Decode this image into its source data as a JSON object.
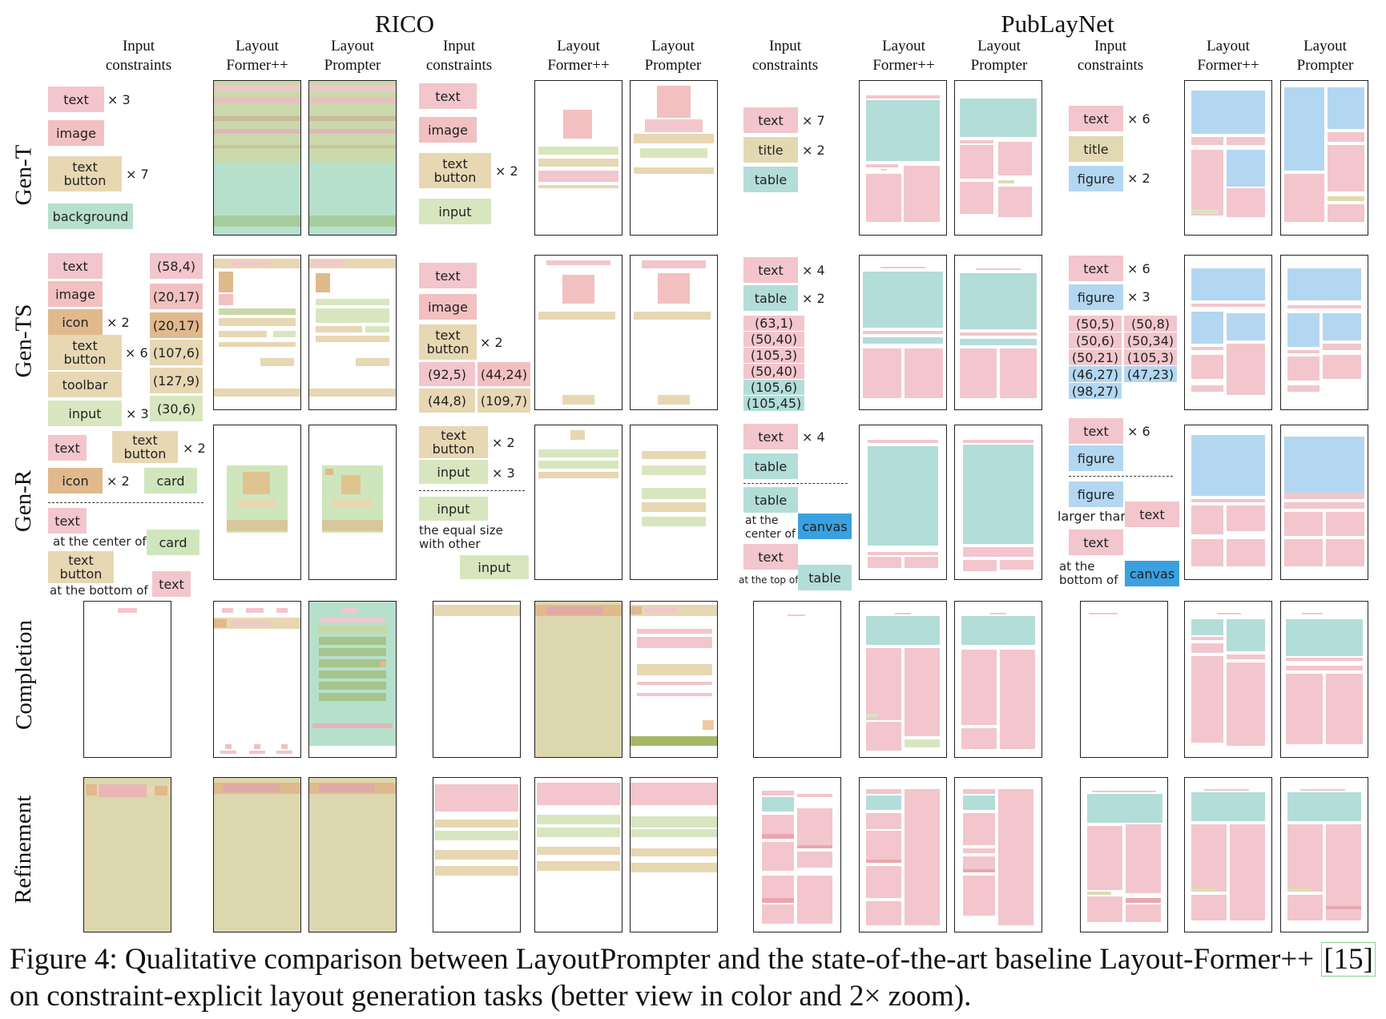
{
  "figure": {
    "datasets": [
      {
        "name": "RICO"
      },
      {
        "name": "PubLayNet"
      }
    ],
    "column_headers": {
      "input": "Input\nconstraints",
      "lfpp": "Layout\nFormer++",
      "lp": "Layout\nPrompter"
    },
    "rows": [
      {
        "label": "Gen-T"
      },
      {
        "label": "Gen-TS"
      },
      {
        "label": "Gen-R"
      },
      {
        "label": "Completion"
      },
      {
        "label": "Refinement"
      }
    ],
    "colors": {
      "text": "#f2c6cc",
      "image": "#f2c0c0",
      "icon": "#e0b98d",
      "text_button": "#e7d7b3",
      "toolbar": "#e7d7b3",
      "input": "#d8e6bf",
      "background": "#b7e0cc",
      "card": "#cfe6bd",
      "title": "#e2d9b3",
      "table": "#b3ddd9",
      "figure": "#b3d7f0",
      "canvas": "#3ba0e0"
    },
    "constraints": {
      "gt_rico1": [
        {
          "label": "text",
          "mult": "× 3"
        },
        {
          "label": "image",
          "mult": ""
        },
        {
          "label": "text\nbutton",
          "mult": "× 7"
        },
        {
          "label": "background",
          "mult": ""
        }
      ],
      "gt_rico2": [
        {
          "label": "text",
          "mult": ""
        },
        {
          "label": "image",
          "mult": ""
        },
        {
          "label": "text\nbutton",
          "mult": "× 2"
        },
        {
          "label": "input",
          "mult": ""
        }
      ],
      "gt_pub1": [
        {
          "label": "text",
          "mult": "× 7"
        },
        {
          "label": "title",
          "mult": "× 2"
        },
        {
          "label": "table",
          "mult": ""
        }
      ],
      "gt_pub2": [
        {
          "label": "text",
          "mult": "× 6"
        },
        {
          "label": "title",
          "mult": ""
        },
        {
          "label": "figure",
          "mult": "× 2"
        }
      ],
      "gts_rico1": {
        "types": [
          {
            "label": "text",
            "mult": ""
          },
          {
            "label": "image",
            "mult": ""
          },
          {
            "label": "icon",
            "mult": "× 2"
          },
          {
            "label": "text\nbutton",
            "mult": "× 6"
          },
          {
            "label": "toolbar",
            "mult": ""
          },
          {
            "label": "input",
            "mult": "× 3"
          }
        ],
        "sizes": [
          "(58,4)",
          "(20,17)",
          "(20,17)",
          "(107,6)",
          "(127,9)",
          "(30,6)"
        ]
      },
      "gts_rico2": {
        "types": [
          {
            "label": "text",
            "mult": ""
          },
          {
            "label": "image",
            "mult": ""
          },
          {
            "label": "text\nbutton",
            "mult": "× 2"
          }
        ],
        "sizes": [
          "(92,5)",
          "(44,24)",
          "(44,8)",
          "(109,7)"
        ]
      },
      "gts_pub1": {
        "types": [
          {
            "label": "text",
            "mult": "× 4"
          },
          {
            "label": "table",
            "mult": "× 2"
          }
        ],
        "sizes": [
          "(63,1)",
          "(50,40)",
          "(105,3)",
          "(50,40)",
          "(105,6)",
          "(105,45)"
        ]
      },
      "gts_pub2": {
        "types": [
          {
            "label": "text",
            "mult": "× 6"
          },
          {
            "label": "figure",
            "mult": "× 3"
          }
        ],
        "sizes": [
          "(50,5)",
          "(50,8)",
          "(50,6)",
          "(50,34)",
          "(50,21)",
          "(105,3)",
          "(46,27)",
          "(47,23)",
          "(98,27)"
        ]
      },
      "gr_rico1": {
        "types": [
          {
            "label": "text",
            "mult": ""
          },
          {
            "label": "text\nbutton",
            "mult": "× 2"
          },
          {
            "label": "icon",
            "mult": "× 2"
          },
          {
            "label": "card",
            "mult": ""
          }
        ],
        "relations": [
          {
            "a": "text",
            "rel": "at the center of",
            "b": "card"
          },
          {
            "a": "text\nbutton",
            "rel": "at the bottom of",
            "b": "text"
          }
        ]
      },
      "gr_rico2": {
        "types": [
          {
            "label": "text\nbutton",
            "mult": "× 2"
          },
          {
            "label": "input",
            "mult": "× 3"
          }
        ],
        "relations": [
          {
            "a": "input",
            "rel": "the equal size\nwith other",
            "b": "input"
          }
        ]
      },
      "gr_pub1": {
        "types": [
          {
            "label": "text",
            "mult": "× 4"
          },
          {
            "label": "table",
            "mult": ""
          }
        ],
        "relations": [
          {
            "a": "table",
            "rel": "at the\ncenter of",
            "b": "canvas"
          },
          {
            "a": "text",
            "rel": "at the top of",
            "b": "table"
          }
        ]
      },
      "gr_pub2": {
        "types": [
          {
            "label": "text",
            "mult": "× 6"
          },
          {
            "label": "figure",
            "mult": ""
          }
        ],
        "relations": [
          {
            "a": "figure",
            "rel": "larger than",
            "b": "text"
          },
          {
            "a": "text",
            "rel": "at the\nbottom of",
            "b": "canvas"
          }
        ]
      }
    }
  },
  "caption": {
    "prefix": "Figure 4: Qualitative comparison between LayoutPrompter and the state-of-the-art baseline Layout-Former++ ",
    "ref": "[15]",
    "suffix": " on constraint-explicit layout generation tasks (better view in color and 2× zoom)."
  }
}
